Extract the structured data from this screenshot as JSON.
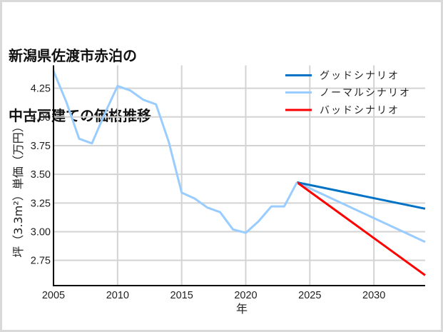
{
  "title": {
    "line1": "新潟県佐渡市赤泊の",
    "line2": "中古戸建ての価格推移"
  },
  "colors": {
    "good": "#0072c6",
    "normal": "#99ccff",
    "bad": "#ff0000",
    "grid": "#d3d3d3",
    "axis": "#000000",
    "frame": "#d9d9d9"
  },
  "chart_data": {
    "type": "line",
    "title": "新潟県佐渡市赤泊の中古戸建ての価格推移",
    "xlabel": "年",
    "ylabel": "坪（3.3m²）単価（万円）",
    "xlim": [
      2005,
      2034
    ],
    "ylim": [
      2.53,
      4.45
    ],
    "xticks": [
      2005,
      2010,
      2015,
      2020,
      2025,
      2030
    ],
    "xtick_labels": [
      "2005",
      "2010",
      "2015",
      "2020",
      "2025",
      "2030"
    ],
    "yticks": [
      2.75,
      3.0,
      3.25,
      3.5,
      3.75,
      4.0,
      4.25
    ],
    "ytick_labels": [
      "2.75",
      "3.00",
      "3.25",
      "3.50",
      "3.75",
      "4.00",
      "4.25"
    ],
    "grid": true,
    "legend_position": "upper right",
    "historical": {
      "name": "ノーマルシナリオ",
      "x": [
        2005,
        2006,
        2007,
        2008,
        2009,
        2010,
        2011,
        2012,
        2013,
        2014,
        2015,
        2016,
        2017,
        2018,
        2019,
        2020,
        2021,
        2022,
        2023,
        2024
      ],
      "y": [
        4.4,
        4.13,
        3.81,
        3.77,
        4.03,
        4.27,
        4.23,
        4.15,
        4.11,
        3.78,
        3.34,
        3.29,
        3.21,
        3.17,
        3.02,
        2.99,
        3.09,
        3.22,
        3.22,
        3.43
      ]
    },
    "series": [
      {
        "name": "グッドシナリオ",
        "color": "#0072c6",
        "x": [
          2024,
          2034
        ],
        "y": [
          3.43,
          3.2
        ]
      },
      {
        "name": "ノーマルシナリオ",
        "color": "#99ccff",
        "x": [
          2024,
          2034
        ],
        "y": [
          3.43,
          2.91
        ]
      },
      {
        "name": "バッドシナリオ",
        "color": "#ff0000",
        "x": [
          2024,
          2034
        ],
        "y": [
          3.43,
          2.62
        ]
      }
    ]
  },
  "legend": [
    {
      "label": "グッドシナリオ",
      "color": "#0072c6"
    },
    {
      "label": "ノーマルシナリオ",
      "color": "#99ccff"
    },
    {
      "label": "バッドシナリオ",
      "color": "#ff0000"
    }
  ]
}
